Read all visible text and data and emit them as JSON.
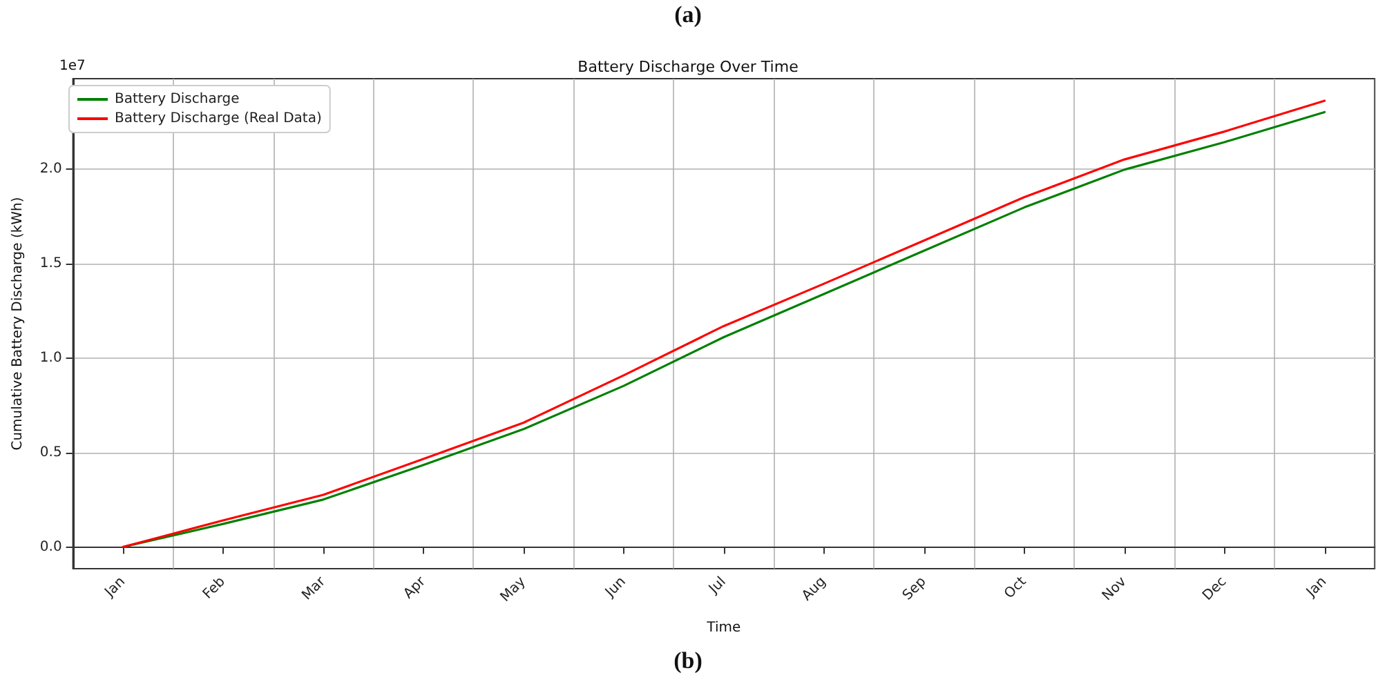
{
  "chart_data": {
    "type": "line",
    "title": "Battery Discharge Over Time",
    "xlabel": "Time",
    "ylabel": "Cumulative Battery Discharge (kWh)",
    "annotations": [
      "(a)",
      "(b)",
      "1e7"
    ],
    "categories": [
      "Jan",
      "Feb",
      "Mar",
      "Apr",
      "May",
      "Jun",
      "Jul",
      "Aug",
      "Sep",
      "Oct",
      "Nov",
      "Dec",
      "Jan"
    ],
    "series": [
      {
        "name": "Battery Discharge",
        "color": "#008000",
        "values": [
          0,
          0.122,
          0.251,
          0.434,
          0.624,
          0.853,
          1.111,
          1.34,
          1.569,
          1.798,
          1.998,
          2.144,
          2.303
        ]
      },
      {
        "name": "Battery Discharge (Real Data)",
        "color": "#ff0000",
        "values": [
          0,
          0.141,
          0.276,
          0.466,
          0.658,
          0.909,
          1.17,
          1.394,
          1.623,
          1.852,
          2.052,
          2.2,
          2.363
        ]
      }
    ],
    "ylim": [
      -0.115,
      2.48
    ],
    "yticks": [
      {
        "value": 0,
        "label": "0.0"
      },
      0.5,
      {
        "value": 1,
        "label": "1.0"
      },
      1.5,
      {
        "value": 2,
        "label": "2.0"
      }
    ],
    "grid": true,
    "legend": "top left",
    "marker": "none",
    "line_style": "solid"
  }
}
